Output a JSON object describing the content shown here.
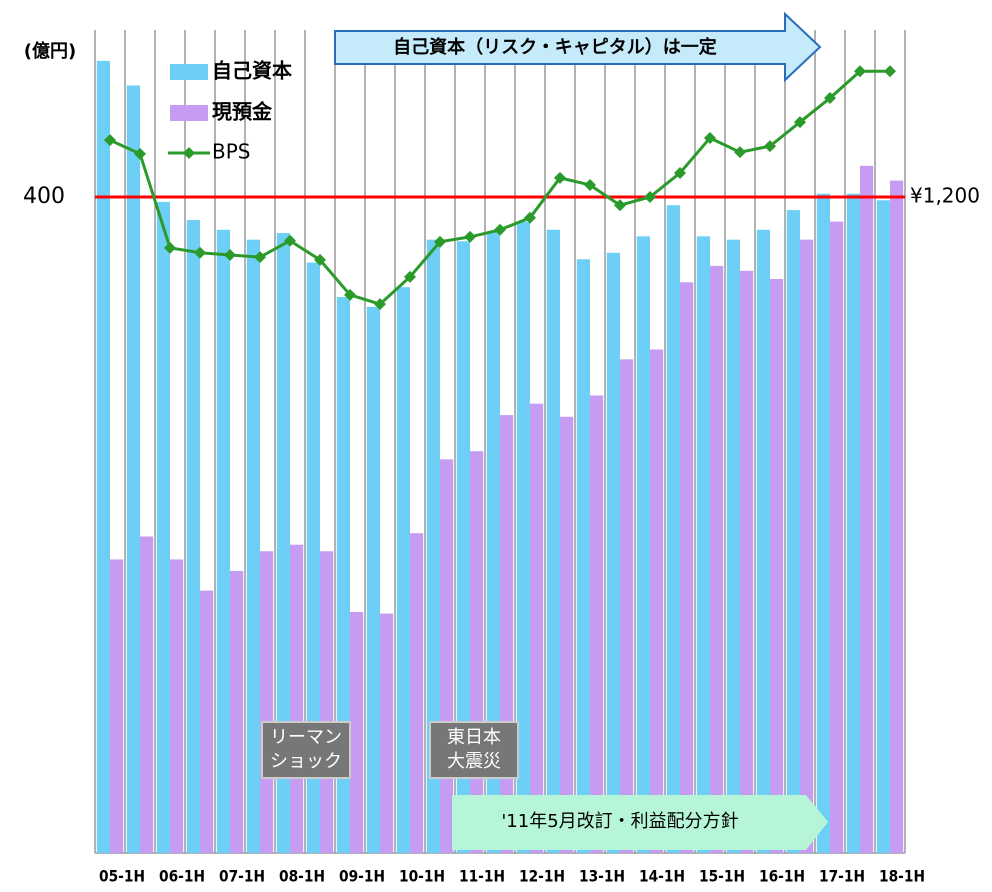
{
  "chart_data": {
    "type": "bar",
    "y_unit_label": "(億円)",
    "categories": [
      "05-1H",
      null,
      "06-1H",
      null,
      "07-1H",
      null,
      "08-1H",
      null,
      "09-1H",
      null,
      "10-1H",
      null,
      "11-1H",
      null,
      "12-1H",
      null,
      "13-1H",
      null,
      "14-1H",
      null,
      "15-1H",
      null,
      "16-1H",
      null,
      "17-1H",
      null,
      "18-1H"
    ],
    "series": [
      {
        "name": "自己資本",
        "type": "bar",
        "color": "#6dcff6",
        "values": [
          483,
          468,
          397,
          386,
          380,
          374,
          378,
          360,
          339,
          333,
          345,
          374,
          373,
          379,
          385,
          380,
          362,
          366,
          376,
          395,
          376,
          374,
          380,
          392,
          402,
          402,
          398
        ]
      },
      {
        "name": "現預金",
        "type": "bar",
        "color": "#c69cf2",
        "values": [
          179,
          193,
          179,
          160,
          172,
          184,
          188,
          184,
          147,
          146,
          195,
          240,
          245,
          267,
          274,
          266,
          279,
          301,
          307,
          348,
          358,
          355,
          350,
          374,
          385,
          419,
          410
        ]
      },
      {
        "name": "BPS",
        "type": "line",
        "axis": "y2",
        "color": "#2a9a2a",
        "values": [
          1304,
          1279,
          1107,
          1098,
          1094,
          1090,
          1120,
          1085,
          1021,
          1004,
          1054,
          1118,
          1127,
          1140,
          1162,
          1235,
          1222,
          1185,
          1200,
          1244,
          1308,
          1282,
          1293,
          1337,
          1381,
          1430,
          1430
        ]
      }
    ],
    "ylim": [
      0,
      500
    ],
    "yticks": [
      400
    ],
    "y2lim": [
      0,
      1500
    ],
    "y2ticks": [
      {
        "value": 1200,
        "label": "¥1,200"
      }
    ],
    "grid": true,
    "grid_color": "#ff0000",
    "annotations": [
      {
        "text": [
          "自己資本（リスク・キャピタル）は一定"
        ]
      },
      {
        "text": [
          "リーマン",
          "ショック"
        ]
      },
      {
        "text": [
          "東日本",
          "大震災"
        ]
      },
      {
        "text": [
          "'11年5月改訂・利益配分方針"
        ]
      }
    ]
  }
}
